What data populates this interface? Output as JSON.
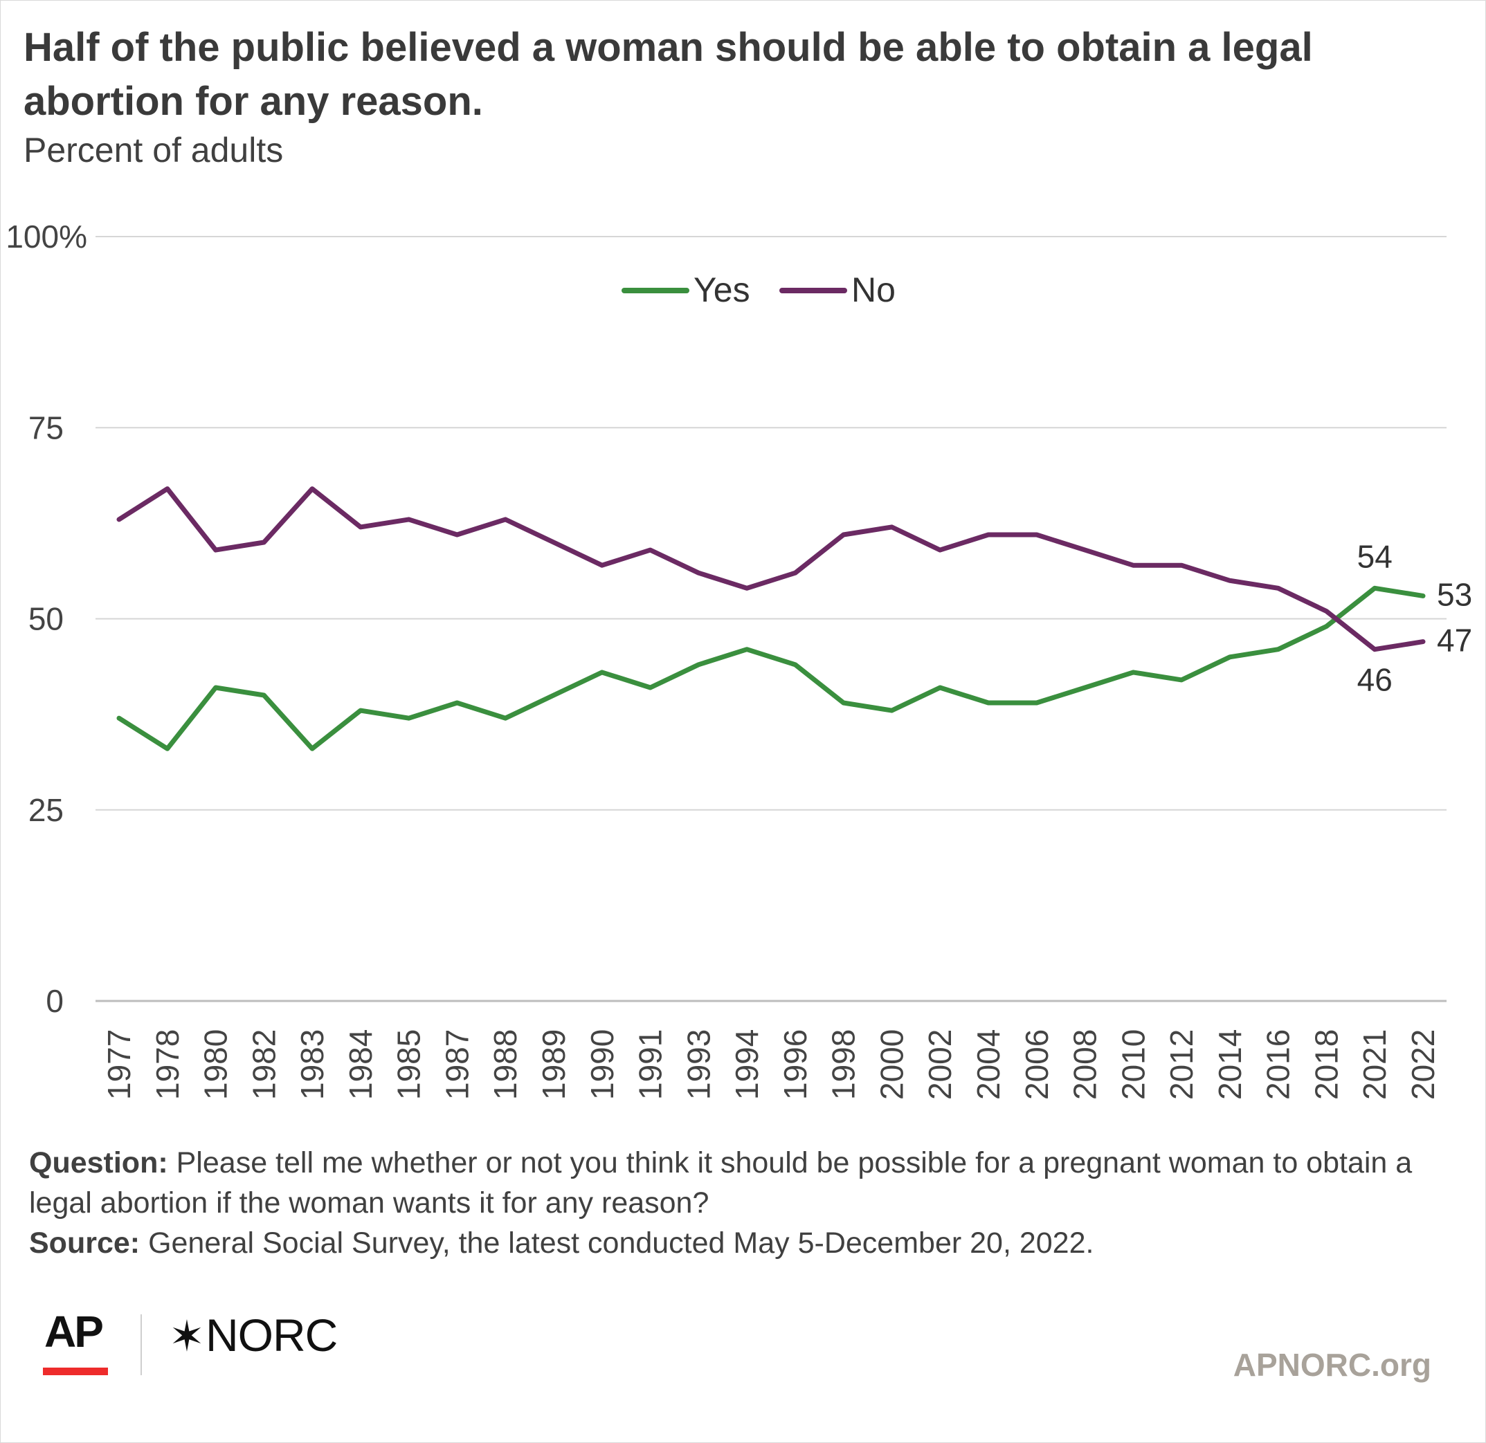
{
  "title": "Half of the public believed a woman should be able to obtain a legal abortion for any reason.",
  "subtitle": "Percent of adults",
  "footnote": {
    "question_label": "Question:",
    "question_text": "Please tell me whether or not you think it should be possible for a pregnant woman to obtain a legal abortion if the woman wants it for any reason?",
    "source_label": "Source:",
    "source_text": "General Social Survey, the latest conducted May 5-December 20, 2022."
  },
  "branding": {
    "ap": "AP",
    "norc": "NORC",
    "site": "APNORC.org"
  },
  "chart_data": {
    "type": "line",
    "title": "Half of the public believed a woman should be able to obtain a legal abortion for any reason.",
    "subtitle": "Percent of adults",
    "categories": [
      "1977",
      "1978",
      "1980",
      "1982",
      "1983",
      "1984",
      "1985",
      "1987",
      "1988",
      "1989",
      "1990",
      "1991",
      "1993",
      "1994",
      "1996",
      "1998",
      "2000",
      "2002",
      "2004",
      "2006",
      "2008",
      "2010",
      "2012",
      "2014",
      "2016",
      "2018",
      "2021",
      "2022"
    ],
    "series": [
      {
        "name": "Yes",
        "color": "#3a8f3e",
        "values": [
          37,
          33,
          41,
          40,
          33,
          38,
          37,
          39,
          37,
          40,
          43,
          41,
          44,
          46,
          44,
          39,
          38,
          41,
          39,
          39,
          41,
          43,
          42,
          45,
          46,
          49,
          54,
          53
        ]
      },
      {
        "name": "No",
        "color": "#6b2a63",
        "values": [
          63,
          67,
          59,
          60,
          67,
          62,
          63,
          61,
          63,
          60,
          57,
          59,
          56,
          54,
          56,
          61,
          62,
          59,
          61,
          61,
          59,
          57,
          57,
          55,
          54,
          51,
          46,
          47
        ]
      }
    ],
    "data_labels": [
      {
        "series": "Yes",
        "category": "2021",
        "text": "54",
        "placement": "above"
      },
      {
        "series": "Yes",
        "category": "2022",
        "text": "53",
        "placement": "right"
      },
      {
        "series": "No",
        "category": "2021",
        "text": "46",
        "placement": "below"
      },
      {
        "series": "No",
        "category": "2022",
        "text": "47",
        "placement": "right"
      }
    ],
    "y_ticks": [
      {
        "value": 0,
        "label": "0"
      },
      {
        "value": 25,
        "label": "25"
      },
      {
        "value": 50,
        "label": "50"
      },
      {
        "value": 75,
        "label": "75"
      },
      {
        "value": 100,
        "label": "100%"
      }
    ],
    "ylim": [
      0,
      100
    ],
    "xlabel": "",
    "ylabel": "",
    "grid": true,
    "legend": "top-center"
  }
}
